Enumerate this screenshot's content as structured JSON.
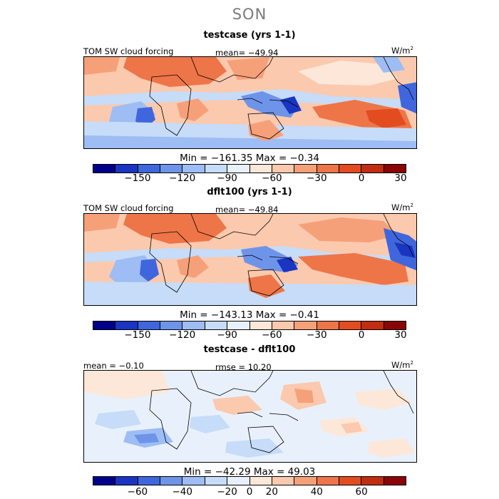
{
  "season": "SON",
  "colorbar_colors": [
    "#00008b",
    "#1a35c2",
    "#3f66dd",
    "#6e94ea",
    "#9dbdf4",
    "#c6dcf8",
    "#e8f1fb",
    "#fde7d8",
    "#fbc9ae",
    "#f6a07a",
    "#ee7548",
    "#e34c21",
    "#c12d10",
    "#8a0505"
  ],
  "panels": [
    {
      "title": "testcase (yrs 1-1)",
      "left_label": "TOM SW cloud forcing",
      "center_label": "mean= −49.94",
      "units": "W/m",
      "units_exp": "2",
      "minmax": "Min = −161.35 Max =  −0.34",
      "ticks": [
        "−150",
        "−120",
        "−90",
        "−60",
        "−30",
        "0",
        "30"
      ]
    },
    {
      "title": "dflt100 (yrs 1-1)",
      "left_label": "TOM SW cloud forcing",
      "center_label": "mean= −49.84",
      "units": "W/m",
      "units_exp": "2",
      "minmax": "Min = −143.13 Max =  −0.41",
      "ticks": [
        "−150",
        "−120",
        "−90",
        "−60",
        "−30",
        "0",
        "30"
      ]
    },
    {
      "title": "testcase - dflt100",
      "left_label": "mean =  −0.10",
      "center_label": "rmse =  10.20",
      "units": "W/m",
      "units_exp": "2",
      "minmax": "Min = −42.29 Max =  49.03",
      "ticks": [
        "−60",
        "−40",
        "−20",
        "0",
        "20",
        "40",
        "60"
      ]
    }
  ]
}
